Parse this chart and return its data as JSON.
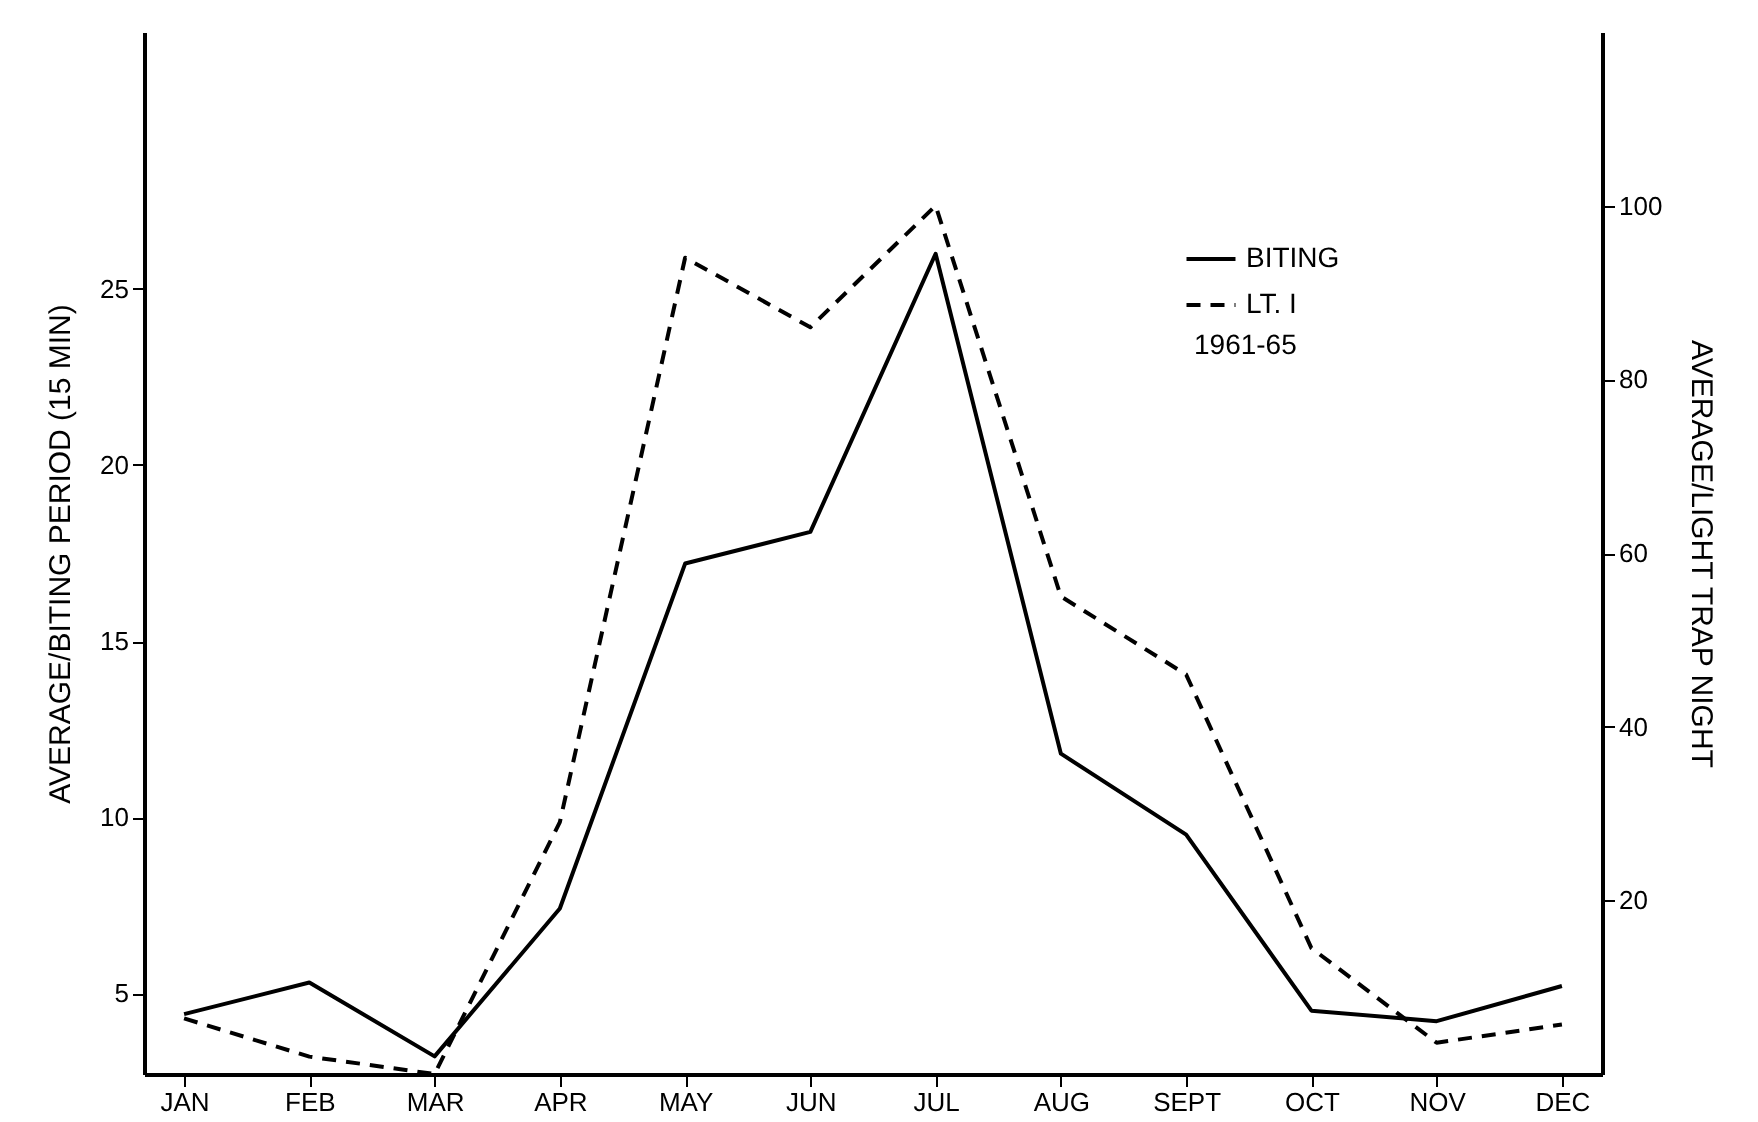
{
  "chart_data": {
    "type": "line",
    "ylabel": "AVERAGE/BITING PERIOD (15 MIN)",
    "y2label": "AVERAGE/LIGHT TRAP NIGHT",
    "categories": [
      "JAN",
      "FEB",
      "MAR",
      "APR",
      "MAY",
      "JUN",
      "JUL",
      "AUG",
      "SEPT",
      "OCT",
      "NOV",
      "DEC"
    ],
    "series": [
      {
        "name": "BITING",
        "color": "#000000",
        "line_style": "solid",
        "values": [
          4.4,
          5.3,
          3.2,
          7.4,
          17.2,
          18.1,
          26.0,
          11.8,
          9.5,
          4.5,
          4.2,
          5.2
        ]
      },
      {
        "name": "LT. I",
        "color": "#000000",
        "line_style": "dashed",
        "axis": "y2",
        "values": [
          6.4,
          2.0,
          0,
          29,
          94,
          86,
          100,
          55,
          46,
          14.5,
          3.6,
          5.7
        ]
      }
    ],
    "ylim": [
      2.7,
      32.3
    ],
    "yticks": [
      5,
      10,
      15,
      20,
      25
    ],
    "y2lim": [
      0,
      120
    ],
    "y2ticks": [
      20,
      40,
      60,
      80,
      100
    ],
    "annotations": [
      "1961-65"
    ],
    "legend": "top right",
    "grid": false
  }
}
